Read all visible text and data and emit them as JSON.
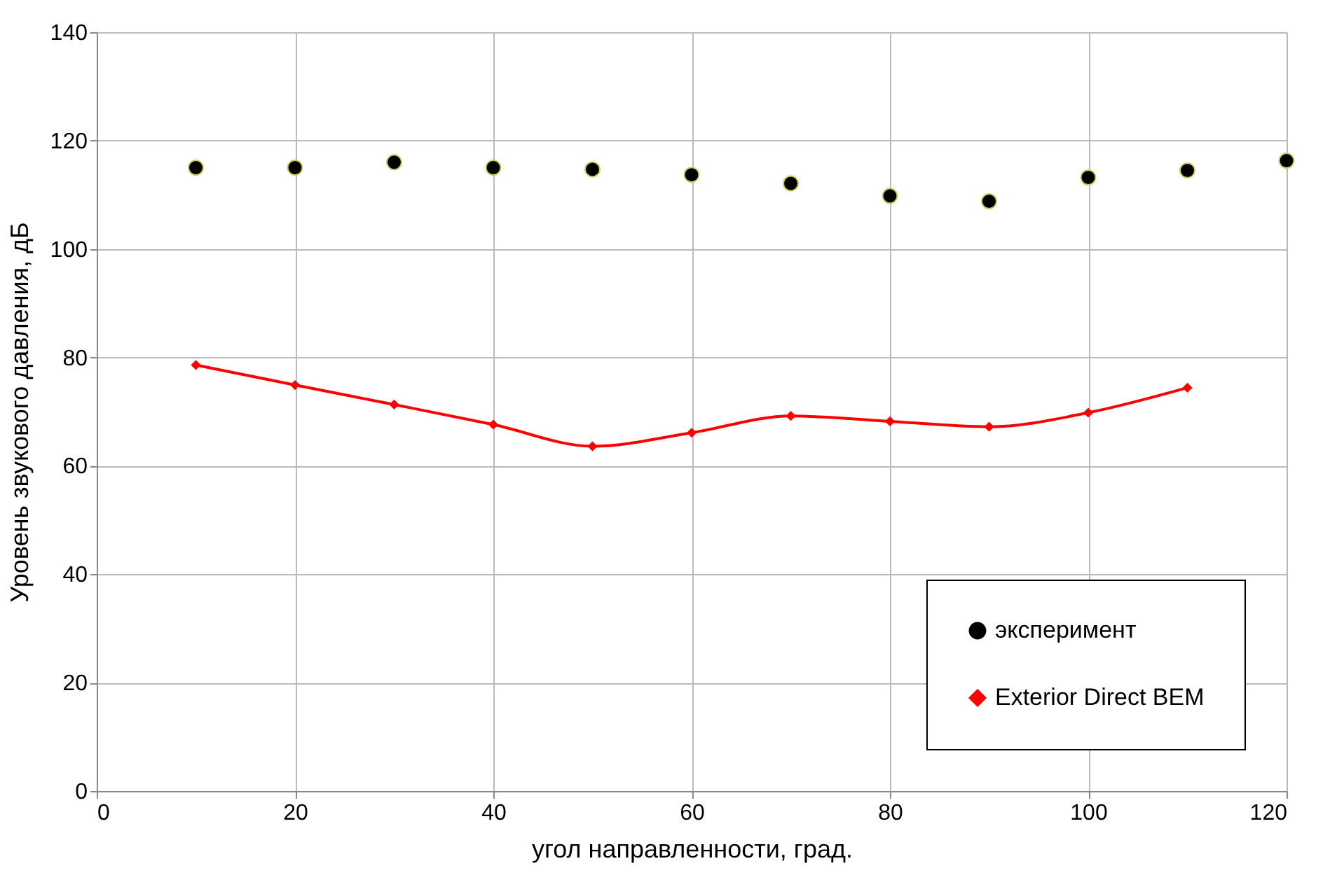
{
  "chart_data": {
    "type": "line",
    "xlabel": "угол направленности, град.",
    "ylabel": "Уровень звукового давления, дБ",
    "xlim": [
      0,
      120
    ],
    "xticks": [
      0,
      20,
      40,
      60,
      80,
      100,
      120
    ],
    "ylim": [
      0,
      140
    ],
    "yticks": [
      0,
      20,
      40,
      60,
      80,
      100,
      120,
      140
    ],
    "grid": true,
    "legend": "bottom right",
    "series": [
      {
        "name": "эксперимент",
        "type": "scatter",
        "marker": "circle",
        "color": "#000000",
        "x": [
          10,
          20,
          30,
          40,
          50,
          60,
          70,
          80,
          90,
          100,
          110,
          120
        ],
        "values": [
          115,
          115,
          116,
          115,
          114.7,
          113.7,
          112.1,
          109.8,
          108.8,
          113.2,
          114.5,
          116.3
        ]
      },
      {
        "name": "Exterior Direct BEM",
        "marker": "diamond",
        "line_style": "solid",
        "color": "#ff0000",
        "x": [
          10,
          20,
          30,
          40,
          50,
          60,
          70,
          80,
          90,
          100,
          110
        ],
        "values": [
          78.6,
          74.9,
          71.3,
          67.6,
          63.6,
          66.1,
          69.2,
          68.2,
          67.2,
          69.8,
          74.4
        ]
      }
    ]
  }
}
